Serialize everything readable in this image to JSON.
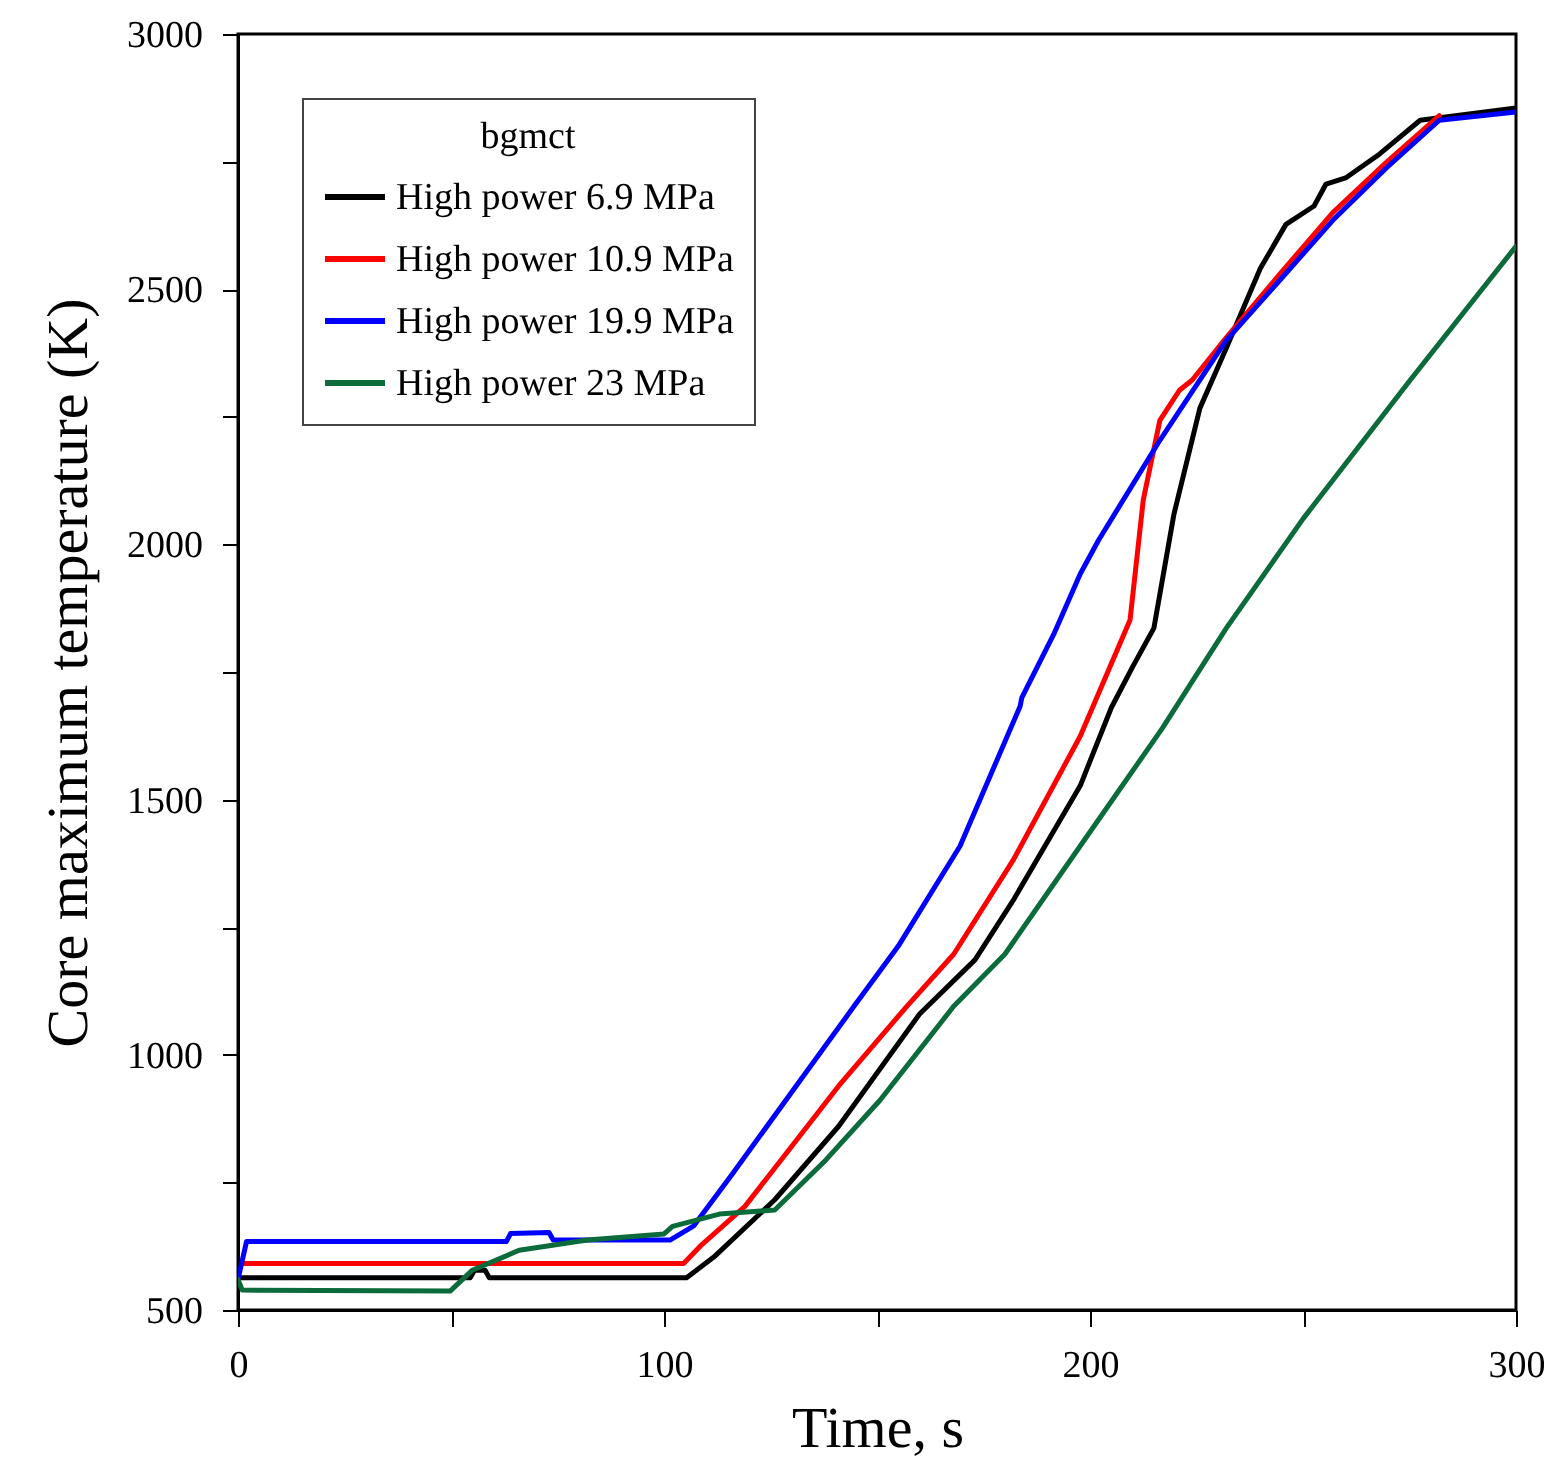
{
  "chart_data": {
    "type": "line",
    "xlabel": "Time, s",
    "ylabel": "Core maximum temperature (K)",
    "legend_title": "bgmct",
    "legend": "top left",
    "xlim": [
      0,
      300
    ],
    "ylim": [
      500,
      3000
    ],
    "xticks": [
      0,
      {
        "value": 50,
        "label": null
      },
      100,
      {
        "value": 150,
        "label": null
      },
      200,
      {
        "value": 250,
        "label": null
      },
      300
    ],
    "yticks": [
      500,
      {
        "value": 750,
        "label": null
      },
      1000,
      {
        "value": 1250,
        "label": null
      },
      1500,
      {
        "value": 1750,
        "label": null
      },
      2000,
      {
        "value": 2250,
        "label": null
      },
      2500,
      {
        "value": 2750,
        "label": null
      },
      3000
    ],
    "line_style": "solid",
    "marker": "none",
    "series": [
      {
        "name": "High power 6.9 MPa",
        "color": "#000000",
        "x": [
          0,
          54.5,
          55.5,
          58,
          59,
          105.3,
          112,
          126,
          141,
          160,
          173,
          182,
          197.7,
          205,
          210,
          215,
          219.7,
          225.8,
          232,
          240,
          246,
          252.6,
          255.4,
          260,
          268,
          277.5,
          300
        ],
        "values": [
          563,
          563,
          578,
          578,
          563,
          563,
          606,
          716,
          860,
          1080,
          1186,
          1303,
          1527,
          1680,
          1760,
          1836,
          2059,
          2267,
          2385,
          2541,
          2627,
          2663,
          2706,
          2718,
          2765,
          2831,
          2855
        ]
      },
      {
        "name": "High power 10.9 MPa",
        "color": "#ff0000",
        "x": [
          1,
          104.6,
          108.5,
          119,
          141,
          157,
          168,
          182,
          197.7,
          209.4,
          212.5,
          216.4,
          221,
          224,
          232,
          244.6,
          257,
          269.5,
          282
        ],
        "values": [
          591,
          591,
          625,
          703,
          939,
          1095,
          1197,
          1382,
          1624,
          1852,
          2087,
          2243,
          2302,
          2322,
          2405,
          2530,
          2650,
          2748,
          2840
        ]
      },
      {
        "name": "High power 19.9 MPa",
        "color": "#0000ff",
        "x": [
          0,
          2,
          63,
          64,
          73,
          74,
          101.4,
          107,
          116,
          132,
          144.6,
          155,
          169.5,
          183.6,
          184,
          191.5,
          197.7,
          202,
          216.4,
          232,
          244.6,
          257,
          269.5,
          282,
          300
        ],
        "values": [
          560,
          634,
          634,
          650,
          652,
          637,
          637,
          665,
          766,
          950,
          1095,
          1213,
          1409,
          1683,
          1700,
          1824,
          1942,
          2008,
          2204,
          2400,
          2518,
          2635,
          2737,
          2831,
          2847
        ]
      },
      {
        "name": "High power 23 MPa",
        "color": "#0b6b3a",
        "x": [
          0,
          1,
          49.8,
          55,
          66,
          82,
          100,
          102,
          113,
          126,
          138,
          150.7,
          168,
          180,
          197.7,
          217,
          232,
          250,
          275,
          300
        ],
        "values": [
          560,
          539,
          537,
          578,
          617,
          637,
          649,
          664,
          688,
          696,
          794,
          911,
          1095,
          1197,
          1409,
          1640,
          1836,
          2050,
          2320,
          2584
        ]
      }
    ]
  }
}
